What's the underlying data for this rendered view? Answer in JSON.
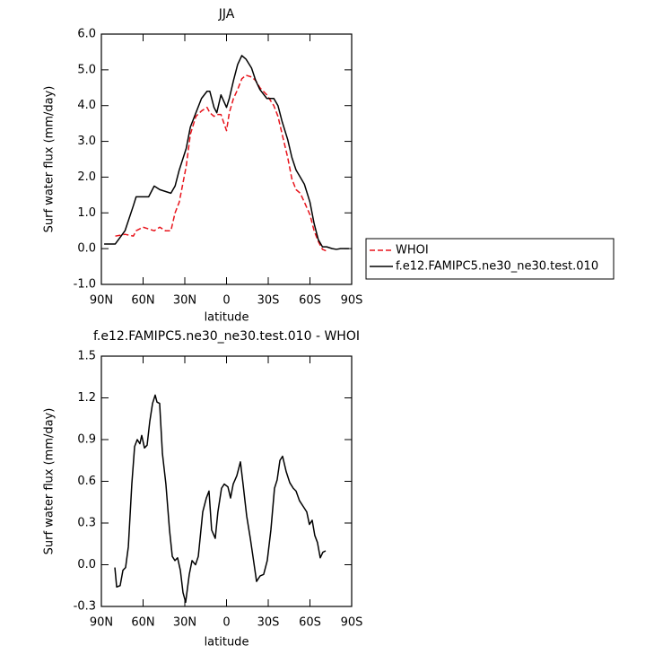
{
  "chart_data": [
    {
      "type": "line",
      "title": "JJA",
      "xlabel": "latitude",
      "ylabel": "Surf water flux (mm/day)",
      "xlim": [
        90,
        -90
      ],
      "xticks": [
        {
          "value": 90,
          "label": "90N"
        },
        {
          "value": 60,
          "label": "60N"
        },
        {
          "value": 30,
          "label": "30N"
        },
        0,
        {
          "value": -30,
          "label": "30S"
        },
        {
          "value": -60,
          "label": "60S"
        },
        {
          "value": -90,
          "label": "90S"
        }
      ],
      "ylim": [
        -1,
        6
      ],
      "yticks": [
        {
          "value": -1,
          "label": "-1.0"
        },
        {
          "value": 0,
          "label": "0.0"
        },
        {
          "value": 1,
          "label": "1.0"
        },
        {
          "value": 2,
          "label": "2.0"
        },
        {
          "value": 3,
          "label": "3.0"
        },
        {
          "value": 4,
          "label": "4.0"
        },
        {
          "value": 5,
          "label": "5.0"
        },
        {
          "value": 6,
          "label": "6.0"
        }
      ],
      "legend": "right",
      "x": [
        88,
        80,
        73,
        67,
        65,
        60,
        56,
        52,
        48,
        44,
        40,
        37,
        34,
        29,
        26,
        22,
        18,
        14,
        12,
        9,
        7,
        4,
        0,
        -2,
        -5,
        -8,
        -11,
        -14,
        -18,
        -21,
        -24,
        -29,
        -34,
        -37,
        -40,
        -44,
        -47,
        -50,
        -53,
        -56,
        -60,
        -63,
        -66,
        -69,
        -72,
        -76,
        -79,
        -82,
        -85,
        -88
      ],
      "series": [
        {
          "name": "WHOI",
          "color": "#e8141c",
          "linestyle": "dashed",
          "values": [
            null,
            0.35,
            0.4,
            0.35,
            0.5,
            0.6,
            0.55,
            0.5,
            0.6,
            0.5,
            0.5,
            1.0,
            1.3,
            2.3,
            3.2,
            3.7,
            3.85,
            3.95,
            3.8,
            3.7,
            3.75,
            3.75,
            3.3,
            3.8,
            4.2,
            4.45,
            4.75,
            4.85,
            4.8,
            4.7,
            4.5,
            4.3,
            4.0,
            3.7,
            3.2,
            2.55,
            1.95,
            1.65,
            1.55,
            1.3,
            0.95,
            0.5,
            0.2,
            -0.02,
            -0.07,
            null,
            null,
            null,
            null,
            null
          ]
        },
        {
          "name": "f.e12.FAMIPC5.ne30_ne30.test.010",
          "color": "#000000",
          "linestyle": "solid",
          "values": [
            0.13,
            0.13,
            0.5,
            1.2,
            1.45,
            1.45,
            1.45,
            1.75,
            1.65,
            1.6,
            1.55,
            1.75,
            2.2,
            2.8,
            3.4,
            3.8,
            4.2,
            4.4,
            4.4,
            3.95,
            3.8,
            4.3,
            3.95,
            4.2,
            4.7,
            5.15,
            5.4,
            5.3,
            5.05,
            4.7,
            4.45,
            4.2,
            4.2,
            4.0,
            3.55,
            3.05,
            2.55,
            2.2,
            2.0,
            1.8,
            1.3,
            0.7,
            0.25,
            0.05,
            0.05,
            0.0,
            -0.02,
            0.0,
            0.0,
            0.0
          ]
        }
      ]
    },
    {
      "type": "line",
      "title": "f.e12.FAMIPC5.ne30_ne30.test.010 - WHOI",
      "xlabel": "latitude",
      "ylabel": "Surf water flux (mm/day)",
      "xlim": [
        90,
        -90
      ],
      "xticks": [
        {
          "value": 90,
          "label": "90N"
        },
        {
          "value": 60,
          "label": "60N"
        },
        {
          "value": 30,
          "label": "30N"
        },
        0,
        {
          "value": -30,
          "label": "30S"
        },
        {
          "value": -60,
          "label": "60S"
        },
        {
          "value": -90,
          "label": "90S"
        }
      ],
      "ylim": [
        -0.3,
        1.5
      ],
      "yticks": [
        -0.3,
        {
          "value": 0,
          "label": "0.0"
        },
        0.3,
        0.6,
        0.9,
        1.2,
        1.5
      ],
      "color": "#000000",
      "x": [
        80.3,
        79.0,
        76.5,
        74.5,
        72.6,
        70.6,
        68.1,
        66.1,
        64.2,
        62.3,
        61.0,
        59.0,
        57.1,
        55.2,
        53.2,
        51.3,
        50.0,
        48.1,
        46.1,
        43.6,
        41.0,
        39.0,
        37.1,
        35.2,
        33.2,
        31.3,
        29.4,
        26.8,
        24.8,
        22.3,
        20.3,
        17.1,
        14.5,
        12.6,
        10.7,
        8.1,
        6.2,
        3.6,
        1.6,
        -1.0,
        -2.9,
        -4.8,
        -7.4,
        -10.0,
        -11.9,
        -14.5,
        -17.1,
        -19.0,
        -21.6,
        -24.2,
        -26.7,
        -29.3,
        -31.9,
        -34.5,
        -36.4,
        -38.4,
        -40.3,
        -42.9,
        -45.5,
        -48.0,
        -50.0,
        -52.5,
        -55.1,
        -57.7,
        -59.6,
        -61.6,
        -63.5,
        -65.4,
        -67.4,
        -69.3,
        -71.3
      ],
      "values": [
        -0.02,
        -0.16,
        -0.15,
        -0.04,
        -0.02,
        0.13,
        0.58,
        0.85,
        0.9,
        0.87,
        0.93,
        0.84,
        0.86,
        1.03,
        1.16,
        1.22,
        1.17,
        1.16,
        0.8,
        0.58,
        0.25,
        0.06,
        0.03,
        0.05,
        -0.04,
        -0.2,
        -0.27,
        -0.07,
        0.03,
        0.0,
        0.06,
        0.38,
        0.48,
        0.53,
        0.25,
        0.19,
        0.38,
        0.55,
        0.58,
        0.56,
        0.48,
        0.58,
        0.64,
        0.74,
        0.58,
        0.35,
        0.19,
        0.06,
        -0.12,
        -0.08,
        -0.07,
        0.03,
        0.25,
        0.55,
        0.61,
        0.75,
        0.78,
        0.67,
        0.59,
        0.55,
        0.53,
        0.46,
        0.42,
        0.38,
        0.29,
        0.32,
        0.21,
        0.16,
        0.05,
        0.09,
        0.1
      ]
    }
  ]
}
